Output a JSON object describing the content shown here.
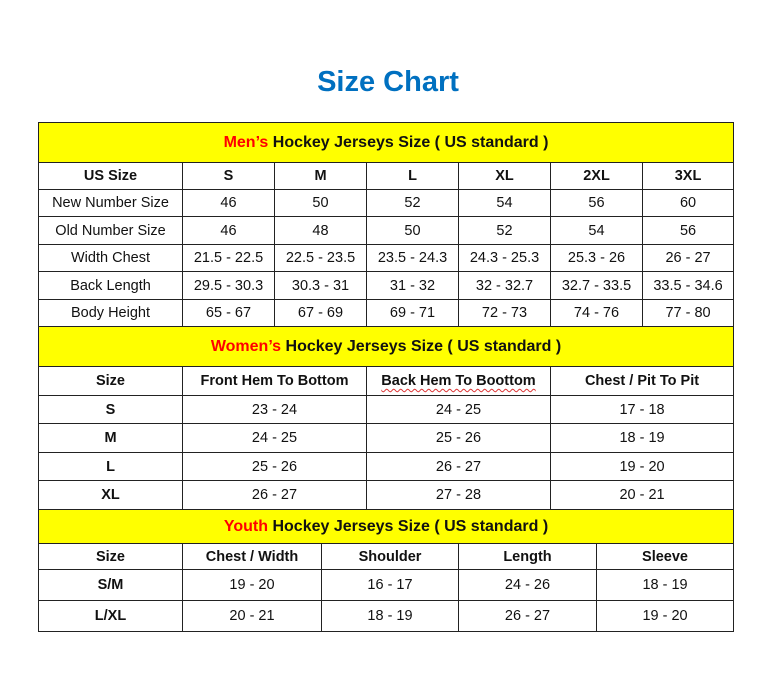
{
  "title": "Size Chart",
  "colors": {
    "title": "#0070C0",
    "banner": "#FFFF00",
    "highlight": "#FF0000"
  },
  "men": {
    "prefix": "Men’s",
    "banner": " Hockey Jerseys Size ( US standard )",
    "headers": [
      "US Size",
      "S",
      "M",
      "L",
      "XL",
      "2XL",
      "3XL"
    ],
    "rows": [
      [
        "New Number Size",
        "46",
        "50",
        "52",
        "54",
        "56",
        "60"
      ],
      [
        "Old Number Size",
        "46",
        "48",
        "50",
        "52",
        "54",
        "56"
      ],
      [
        "Width Chest",
        "21.5 - 22.5",
        "22.5 - 23.5",
        "23.5 - 24.3",
        "24.3 - 25.3",
        "25.3 - 26",
        "26 - 27"
      ],
      [
        "Back Length",
        "29.5 - 30.3",
        "30.3 - 31",
        "31 - 32",
        "32 - 32.7",
        "32.7 - 33.5",
        "33.5 - 34.6"
      ],
      [
        "Body Height",
        "65 - 67",
        "67 - 69",
        "69 - 71",
        "72 - 73",
        "74 - 76",
        "77 - 80"
      ]
    ]
  },
  "women": {
    "prefix": "Women’s",
    "banner": " Hockey Jerseys Size ( US standard )",
    "headers": [
      "Size",
      "Front Hem To Bottom",
      "Back Hem To Boottom",
      "Chest / Pit To Pit"
    ],
    "rows": [
      [
        "S",
        "23 - 24",
        "24 - 25",
        "17 - 18"
      ],
      [
        "M",
        "24 - 25",
        "25 - 26",
        "18 - 19"
      ],
      [
        "L",
        "25 - 26",
        "26 - 27",
        "19 - 20"
      ],
      [
        "XL",
        "26 - 27",
        "27 - 28",
        "20 - 21"
      ]
    ]
  },
  "youth": {
    "prefix": "Youth",
    "banner": " Hockey Jerseys Size ( US standard )",
    "headers": [
      "Size",
      "Chest / Width",
      "Shoulder",
      "Length",
      "Sleeve"
    ],
    "rows": [
      [
        "S/M",
        "19 - 20",
        "16 - 17",
        "24 - 26",
        "18 - 19"
      ],
      [
        "L/XL",
        "20 - 21",
        "18 - 19",
        "26 - 27",
        "19 - 20"
      ]
    ]
  }
}
